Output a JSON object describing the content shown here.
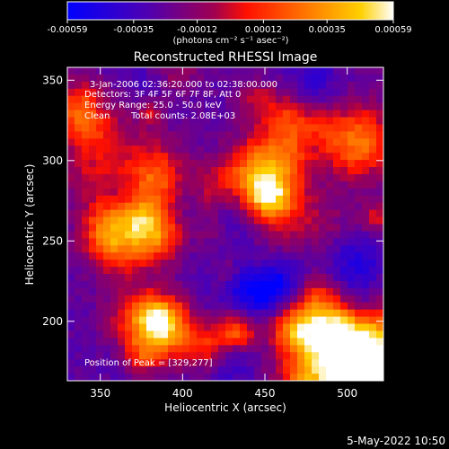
{
  "chart_data": {
    "type": "heatmap",
    "title": "Reconstructed RHESSI Image",
    "xlabel": "Heliocentric X (arcsec)",
    "ylabel": "Heliocentric Y (arcsec)",
    "xlim": [
      330,
      522
    ],
    "ylim": [
      163,
      358
    ],
    "xticks": [
      350,
      400,
      450,
      500
    ],
    "yticks": [
      200,
      250,
      300,
      350
    ],
    "colorbar": {
      "range": [
        -0.00059,
        0.00059
      ],
      "tick_values": [
        -0.00059,
        -0.00035,
        -0.00012,
        0.00012,
        0.00035,
        0.00059
      ],
      "tick_labels": [
        "-0.00059",
        "-0.00035",
        "-0.00012",
        "0.00012",
        "0.00035",
        "0.00059"
      ],
      "unit_label": "(photons cm⁻² s⁻¹ asec⁻²)",
      "colors": [
        "#0000ff",
        "#5000b0",
        "#a00050",
        "#ff1000",
        "#ff8000",
        "#ffd000",
        "#ffffff"
      ]
    },
    "annotations": {
      "time": "3-Jan-2006 02:36:20.000 to 02:38:00.000",
      "detectors": "Detectors: 3F 4F 5F 6F 7F 8F, Att 0",
      "energy": "Energy Range: 25.0 - 50.0 keV",
      "clean": "Clean",
      "total_counts": "Total counts: 2.08E+03",
      "peak": "Position of Peak = [329,277]"
    },
    "peak_position": [
      329,
      277
    ],
    "grid": false
  },
  "footer": {
    "date": "5-May-2022 10:50"
  }
}
